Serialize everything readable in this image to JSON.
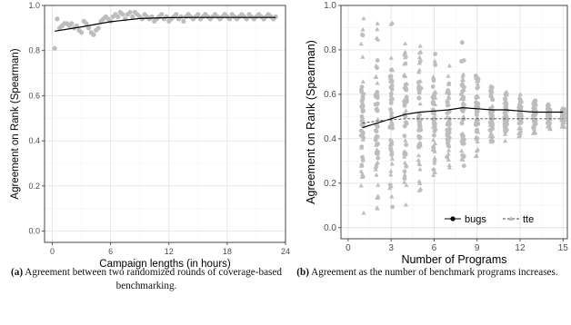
{
  "chart_data": [
    {
      "type": "scatter",
      "title": "",
      "xlabel": "Campaign lengths (in hours)",
      "ylabel": "Agreement on Rank (Spearman)",
      "xlim": [
        -0.8,
        24.0
      ],
      "ylim": [
        -0.05,
        1.0
      ],
      "x_ticks": [
        "0",
        "6",
        "12",
        "18",
        "24"
      ],
      "y_ticks": [
        "0.0",
        "0.2",
        "0.4",
        "0.6",
        "0.8",
        "1.0"
      ],
      "grid": true,
      "point_color": "#bdbdbd",
      "line_color": "#000000",
      "points": [
        [
          0.25,
          0.81
        ],
        [
          0.5,
          0.94
        ],
        [
          0.75,
          0.9
        ],
        [
          1.0,
          0.91
        ],
        [
          1.25,
          0.92
        ],
        [
          1.5,
          0.92
        ],
        [
          1.75,
          0.91
        ],
        [
          2.0,
          0.92
        ],
        [
          2.25,
          0.9
        ],
        [
          2.5,
          0.91
        ],
        [
          2.75,
          0.89
        ],
        [
          3.0,
          0.88
        ],
        [
          3.25,
          0.93
        ],
        [
          3.5,
          0.92
        ],
        [
          3.75,
          0.9
        ],
        [
          4.0,
          0.88
        ],
        [
          4.25,
          0.87
        ],
        [
          4.5,
          0.89
        ],
        [
          4.75,
          0.9
        ],
        [
          5.0,
          0.93
        ],
        [
          5.25,
          0.94
        ],
        [
          5.5,
          0.95
        ],
        [
          5.75,
          0.94
        ],
        [
          6.0,
          0.93
        ],
        [
          6.25,
          0.95
        ],
        [
          6.5,
          0.96
        ],
        [
          6.75,
          0.95
        ],
        [
          7.0,
          0.97
        ],
        [
          7.25,
          0.96
        ],
        [
          7.5,
          0.94
        ],
        [
          7.75,
          0.96
        ],
        [
          8.0,
          0.97
        ],
        [
          8.25,
          0.95
        ],
        [
          8.5,
          0.97
        ],
        [
          8.75,
          0.96
        ],
        [
          9.0,
          0.95
        ],
        [
          9.25,
          0.94
        ],
        [
          9.5,
          0.96
        ],
        [
          9.75,
          0.95
        ],
        [
          10.0,
          0.94
        ],
        [
          10.25,
          0.95
        ],
        [
          10.5,
          0.93
        ],
        [
          10.75,
          0.94
        ],
        [
          11.0,
          0.95
        ],
        [
          11.25,
          0.96
        ],
        [
          11.5,
          0.94
        ],
        [
          11.75,
          0.95
        ],
        [
          12.0,
          0.93
        ],
        [
          12.25,
          0.94
        ],
        [
          12.5,
          0.95
        ],
        [
          12.75,
          0.96
        ],
        [
          13.0,
          0.94
        ],
        [
          13.25,
          0.95
        ],
        [
          13.5,
          0.93
        ],
        [
          13.75,
          0.95
        ],
        [
          14.0,
          0.96
        ],
        [
          14.25,
          0.95
        ],
        [
          14.5,
          0.94
        ],
        [
          14.75,
          0.95
        ],
        [
          15.0,
          0.96
        ],
        [
          15.25,
          0.94
        ],
        [
          15.5,
          0.95
        ],
        [
          15.75,
          0.96
        ],
        [
          16.0,
          0.95
        ],
        [
          16.25,
          0.94
        ],
        [
          16.5,
          0.95
        ],
        [
          16.75,
          0.96
        ],
        [
          17.0,
          0.95
        ],
        [
          17.25,
          0.94
        ],
        [
          17.5,
          0.95
        ],
        [
          17.75,
          0.96
        ],
        [
          18.0,
          0.95
        ],
        [
          18.25,
          0.94
        ],
        [
          18.5,
          0.96
        ],
        [
          18.75,
          0.95
        ],
        [
          19.0,
          0.94
        ],
        [
          19.25,
          0.95
        ],
        [
          19.5,
          0.96
        ],
        [
          19.75,
          0.95
        ],
        [
          20.0,
          0.94
        ],
        [
          20.25,
          0.96
        ],
        [
          20.5,
          0.95
        ],
        [
          20.75,
          0.94
        ],
        [
          21.0,
          0.95
        ],
        [
          21.25,
          0.96
        ],
        [
          21.5,
          0.95
        ],
        [
          21.75,
          0.94
        ],
        [
          22.0,
          0.95
        ],
        [
          22.25,
          0.96
        ],
        [
          22.5,
          0.95
        ],
        [
          22.75,
          0.94
        ],
        [
          23.0,
          0.95
        ]
      ],
      "trend": [
        [
          0.25,
          0.886
        ],
        [
          3,
          0.905
        ],
        [
          6,
          0.928
        ],
        [
          9,
          0.942
        ],
        [
          12,
          0.946
        ],
        [
          15,
          0.947
        ],
        [
          18,
          0.947
        ],
        [
          21,
          0.947
        ],
        [
          23,
          0.947
        ]
      ]
    },
    {
      "type": "scatter",
      "title": "",
      "xlabel": "Number of Programs",
      "ylabel": "Agreement on Rank (Spearman)",
      "xlim": [
        -0.5,
        15.3
      ],
      "ylim": [
        -0.05,
        1.0
      ],
      "x_ticks": [
        "0",
        "3",
        "6",
        "9",
        "12",
        "15"
      ],
      "y_ticks": [
        "0.0",
        "0.2",
        "0.4",
        "0.6",
        "0.8",
        "1.0"
      ],
      "grid": true,
      "legend_position": "bottom-right",
      "point_color": "#bdbdbd",
      "series": [
        {
          "name": "bugs",
          "marker": "circle",
          "line_style": "solid",
          "point_columns": [
            {
              "x": 1,
              "min": 0.03,
              "max": 1.0
            },
            {
              "x": 2,
              "min": 0.04,
              "max": 0.96
            },
            {
              "x": 3,
              "min": 0.02,
              "max": 0.96
            },
            {
              "x": 4,
              "min": 0.05,
              "max": 0.88
            },
            {
              "x": 5,
              "min": 0.1,
              "max": 0.84
            },
            {
              "x": 6,
              "min": 0.18,
              "max": 0.8
            },
            {
              "x": 7,
              "min": 0.24,
              "max": 0.76
            },
            {
              "x": 8,
              "min": 0.2,
              "max": 0.9
            },
            {
              "x": 9,
              "min": 0.3,
              "max": 0.74
            },
            {
              "x": 10,
              "min": 0.34,
              "max": 0.68
            },
            {
              "x": 11,
              "min": 0.38,
              "max": 0.65
            },
            {
              "x": 12,
              "min": 0.4,
              "max": 0.62
            },
            {
              "x": 13,
              "min": 0.43,
              "max": 0.6
            },
            {
              "x": 14,
              "min": 0.45,
              "max": 0.58
            },
            {
              "x": 15,
              "min": 0.46,
              "max": 0.56
            }
          ],
          "trend": [
            [
              1,
              0.45
            ],
            [
              2,
              0.47
            ],
            [
              3,
              0.49
            ],
            [
              4,
              0.51
            ],
            [
              5,
              0.52
            ],
            [
              6,
              0.525
            ],
            [
              7,
              0.53
            ],
            [
              8,
              0.54
            ],
            [
              9,
              0.535
            ],
            [
              10,
              0.53
            ],
            [
              11,
              0.53
            ],
            [
              12,
              0.525
            ],
            [
              13,
              0.52
            ],
            [
              14,
              0.52
            ],
            [
              15,
              0.52
            ]
          ]
        },
        {
          "name": "tte",
          "marker": "triangle",
          "line_style": "dashed",
          "point_columns": [
            {
              "x": 1,
              "min": 0.06,
              "max": 0.96
            },
            {
              "x": 2,
              "min": 0.08,
              "max": 0.93
            },
            {
              "x": 3,
              "min": 0.05,
              "max": 0.94
            },
            {
              "x": 4,
              "min": 0.08,
              "max": 0.86
            },
            {
              "x": 5,
              "min": 0.12,
              "max": 0.82
            },
            {
              "x": 6,
              "min": 0.2,
              "max": 0.78
            },
            {
              "x": 7,
              "min": 0.26,
              "max": 0.74
            },
            {
              "x": 8,
              "min": 0.28,
              "max": 0.7
            },
            {
              "x": 9,
              "min": 0.32,
              "max": 0.66
            },
            {
              "x": 10,
              "min": 0.35,
              "max": 0.64
            },
            {
              "x": 11,
              "min": 0.38,
              "max": 0.62
            },
            {
              "x": 12,
              "min": 0.4,
              "max": 0.6
            },
            {
              "x": 13,
              "min": 0.42,
              "max": 0.58
            },
            {
              "x": 14,
              "min": 0.44,
              "max": 0.56
            },
            {
              "x": 15,
              "min": 0.45,
              "max": 0.54
            }
          ],
          "trend": [
            [
              1,
              0.47
            ],
            [
              2,
              0.48
            ],
            [
              3,
              0.485
            ],
            [
              4,
              0.49
            ],
            [
              5,
              0.49
            ],
            [
              6,
              0.49
            ],
            [
              7,
              0.49
            ],
            [
              8,
              0.49
            ],
            [
              9,
              0.49
            ],
            [
              10,
              0.49
            ],
            [
              11,
              0.49
            ],
            [
              12,
              0.49
            ],
            [
              13,
              0.49
            ],
            [
              14,
              0.49
            ],
            [
              15,
              0.49
            ]
          ]
        }
      ]
    }
  ],
  "captions": {
    "a": {
      "label": "(a)",
      "text": "Agreement between two randomized rounds of coverage-based benchmarking."
    },
    "b": {
      "label": "(b)",
      "text": "Agreement as the number of benchmark programs increases."
    }
  }
}
